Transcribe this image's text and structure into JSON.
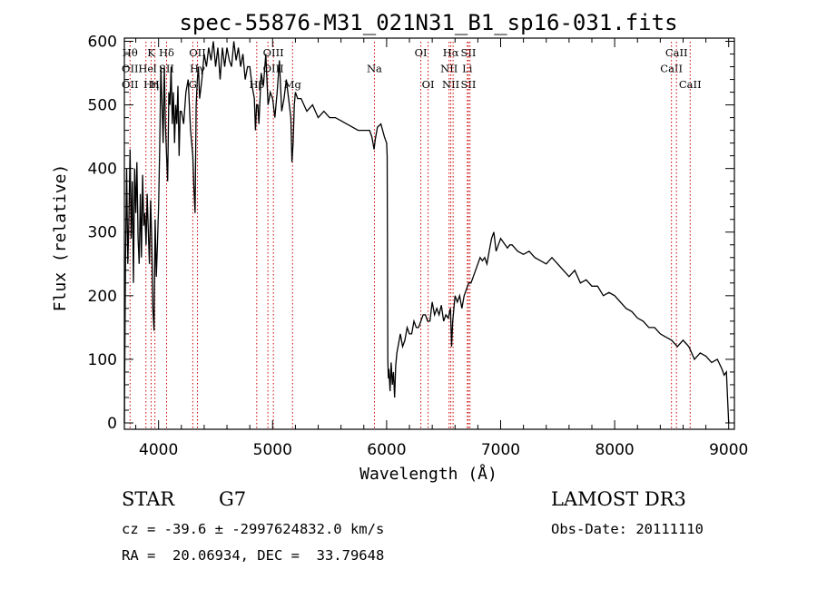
{
  "chart_data": {
    "type": "line",
    "title": "spec-55876-M31_021N31_B1_sp16-031.fits",
    "xlabel": "Wavelength (Å)",
    "ylabel": "Flux (relative)",
    "xlim": [
      3700,
      9050
    ],
    "ylim": [
      -10,
      605
    ],
    "xticks": [
      4000,
      5000,
      6000,
      7000,
      8000,
      9000
    ],
    "yticks": [
      0,
      100,
      200,
      300,
      400,
      500,
      600
    ],
    "grid": false,
    "legend": "none",
    "line_color": "#000000",
    "marker_color": "#cc0000",
    "series": [
      {
        "x": [
          3700,
          3710,
          3720,
          3730,
          3740,
          3750,
          3760,
          3770,
          3780,
          3790,
          3800,
          3810,
          3820,
          3830,
          3840,
          3850,
          3860,
          3870,
          3880,
          3890,
          3900,
          3910,
          3920,
          3930,
          3940,
          3950,
          3960,
          3970,
          3980,
          3990,
          4000,
          4010,
          4020,
          4030,
          4040,
          4050,
          4060,
          4070,
          4080,
          4090,
          4100,
          4110,
          4120,
          4130,
          4140,
          4150,
          4160,
          4170,
          4180,
          4190,
          4200,
          4220,
          4240,
          4260,
          4280,
          4300,
          4310,
          4320,
          4330,
          4340,
          4350,
          4360,
          4380,
          4400,
          4420,
          4440,
          4460,
          4480,
          4500,
          4520,
          4540,
          4560,
          4580,
          4600,
          4620,
          4640,
          4660,
          4680,
          4700,
          4720,
          4740,
          4760,
          4780,
          4800,
          4820,
          4840,
          4850,
          4860,
          4870,
          4880,
          4900,
          4920,
          4940,
          4960,
          4980,
          5000,
          5020,
          5040,
          5060,
          5080,
          5100,
          5120,
          5140,
          5160,
          5170,
          5180,
          5190,
          5200,
          5220,
          5250,
          5300,
          5350,
          5400,
          5450,
          5500,
          5550,
          5600,
          5650,
          5700,
          5750,
          5800,
          5850,
          5870,
          5890,
          5900,
          5920,
          5950,
          5980,
          6000,
          6005,
          6010,
          6015,
          6020,
          6030,
          6040,
          6050,
          6060,
          6070,
          6080,
          6090,
          6100,
          6120,
          6140,
          6160,
          6180,
          6200,
          6220,
          6240,
          6260,
          6280,
          6300,
          6320,
          6340,
          6360,
          6380,
          6400,
          6420,
          6440,
          6460,
          6480,
          6500,
          6520,
          6540,
          6560,
          6570,
          6580,
          6600,
          6620,
          6640,
          6660,
          6680,
          6700,
          6720,
          6740,
          6760,
          6780,
          6800,
          6820,
          6840,
          6860,
          6880,
          6900,
          6920,
          6940,
          6960,
          6980,
          7000,
          7020,
          7040,
          7060,
          7080,
          7100,
          7150,
          7200,
          7250,
          7300,
          7350,
          7400,
          7450,
          7500,
          7550,
          7600,
          7650,
          7700,
          7750,
          7800,
          7850,
          7900,
          7950,
          8000,
          8050,
          8100,
          8150,
          8200,
          8250,
          8300,
          8350,
          8400,
          8450,
          8500,
          8550,
          8600,
          8650,
          8700,
          8750,
          8800,
          8850,
          8900,
          8940,
          8960,
          8980,
          9000
        ],
        "y": [
          0,
          260,
          400,
          250,
          320,
          430,
          290,
          380,
          220,
          400,
          330,
          410,
          290,
          250,
          360,
          260,
          390,
          310,
          330,
          280,
          360,
          300,
          250,
          350,
          290,
          180,
          145,
          320,
          230,
          280,
          340,
          430,
          560,
          500,
          440,
          560,
          470,
          420,
          380,
          520,
          500,
          560,
          470,
          520,
          440,
          500,
          470,
          530,
          420,
          490,
          490,
          470,
          520,
          540,
          460,
          420,
          370,
          330,
          500,
          540,
          560,
          510,
          540,
          580,
          560,
          590,
          570,
          600,
          560,
          590,
          540,
          590,
          560,
          590,
          570,
          560,
          600,
          570,
          590,
          560,
          580,
          540,
          560,
          560,
          530,
          510,
          460,
          500,
          500,
          470,
          550,
          530,
          580,
          500,
          520,
          510,
          480,
          520,
          570,
          490,
          510,
          540,
          510,
          480,
          410,
          440,
          500,
          520,
          510,
          510,
          490,
          500,
          480,
          490,
          480,
          480,
          475,
          470,
          465,
          460,
          460,
          460,
          450,
          430,
          445,
          465,
          470,
          450,
          440,
          420,
          100,
          70,
          85,
          50,
          95,
          60,
          80,
          40,
          90,
          110,
          120,
          140,
          120,
          130,
          150,
          140,
          140,
          160,
          150,
          150,
          160,
          170,
          170,
          160,
          160,
          190,
          170,
          180,
          170,
          185,
          160,
          170,
          165,
          180,
          120,
          160,
          200,
          190,
          200,
          180,
          200,
          210,
          220,
          220,
          230,
          240,
          250,
          260,
          255,
          260,
          250,
          270,
          290,
          300,
          270,
          280,
          290,
          285,
          280,
          275,
          280,
          280,
          270,
          265,
          270,
          260,
          255,
          250,
          260,
          250,
          240,
          230,
          240,
          220,
          225,
          215,
          215,
          200,
          205,
          200,
          190,
          180,
          175,
          165,
          160,
          150,
          150,
          140,
          135,
          130,
          120,
          130,
          120,
          100,
          110,
          105,
          95,
          100,
          85,
          75,
          80,
          0
        ]
      }
    ],
    "line_markers": [
      {
        "x": 3750,
        "labels": [
          "Hθ",
          "OII",
          "OII"
        ]
      },
      {
        "x": 3889,
        "labels": [
          "",
          "He",
          ""
        ]
      },
      {
        "x": 3935,
        "labels": [
          "K",
          "",
          "Hη"
        ]
      },
      {
        "x": 3968,
        "labels": [
          "",
          "I",
          "H"
        ]
      },
      {
        "x": 4070,
        "labels": [
          "Hδ",
          "SII",
          ""
        ]
      },
      {
        "x": 4300,
        "labels": [
          "",
          "",
          "G"
        ]
      },
      {
        "x": 4341,
        "labels": [
          "OII",
          "Hγ",
          ""
        ]
      },
      {
        "x": 4861,
        "labels": [
          "",
          "",
          "Hβ"
        ]
      },
      {
        "x": 4959,
        "labels": [
          "",
          "",
          ""
        ]
      },
      {
        "x": 5007,
        "labels": [
          "OIII",
          "OIII",
          ""
        ]
      },
      {
        "x": 5175,
        "labels": [
          "",
          "",
          "Mg"
        ]
      },
      {
        "x": 5893,
        "labels": [
          "",
          "Na",
          ""
        ]
      },
      {
        "x": 6300,
        "labels": [
          "OI",
          "",
          ""
        ]
      },
      {
        "x": 6364,
        "labels": [
          "",
          "",
          "OI"
        ]
      },
      {
        "x": 6548,
        "labels": [
          "",
          "NII",
          ""
        ]
      },
      {
        "x": 6563,
        "labels": [
          "Hα",
          "",
          "NII"
        ]
      },
      {
        "x": 6583,
        "labels": [
          "",
          "",
          ""
        ]
      },
      {
        "x": 6708,
        "labels": [
          "",
          "Li",
          ""
        ]
      },
      {
        "x": 6717,
        "labels": [
          "SII",
          "",
          "SII"
        ]
      },
      {
        "x": 6731,
        "labels": [
          "",
          "",
          ""
        ]
      },
      {
        "x": 8498,
        "labels": [
          "",
          "CaII",
          ""
        ]
      },
      {
        "x": 8542,
        "labels": [
          "CaII",
          "",
          ""
        ]
      },
      {
        "x": 8662,
        "labels": [
          "",
          "",
          "CaII"
        ]
      }
    ]
  },
  "info": {
    "object_type": "STAR",
    "subclass": "G7",
    "survey": "LAMOST DR3",
    "redshift_text": "cz = -39.6 ± -2997624832.0 km/s",
    "obs_date": "Obs-Date: 20111110",
    "coords": "RA =  20.06934, DEC =  33.79648"
  }
}
